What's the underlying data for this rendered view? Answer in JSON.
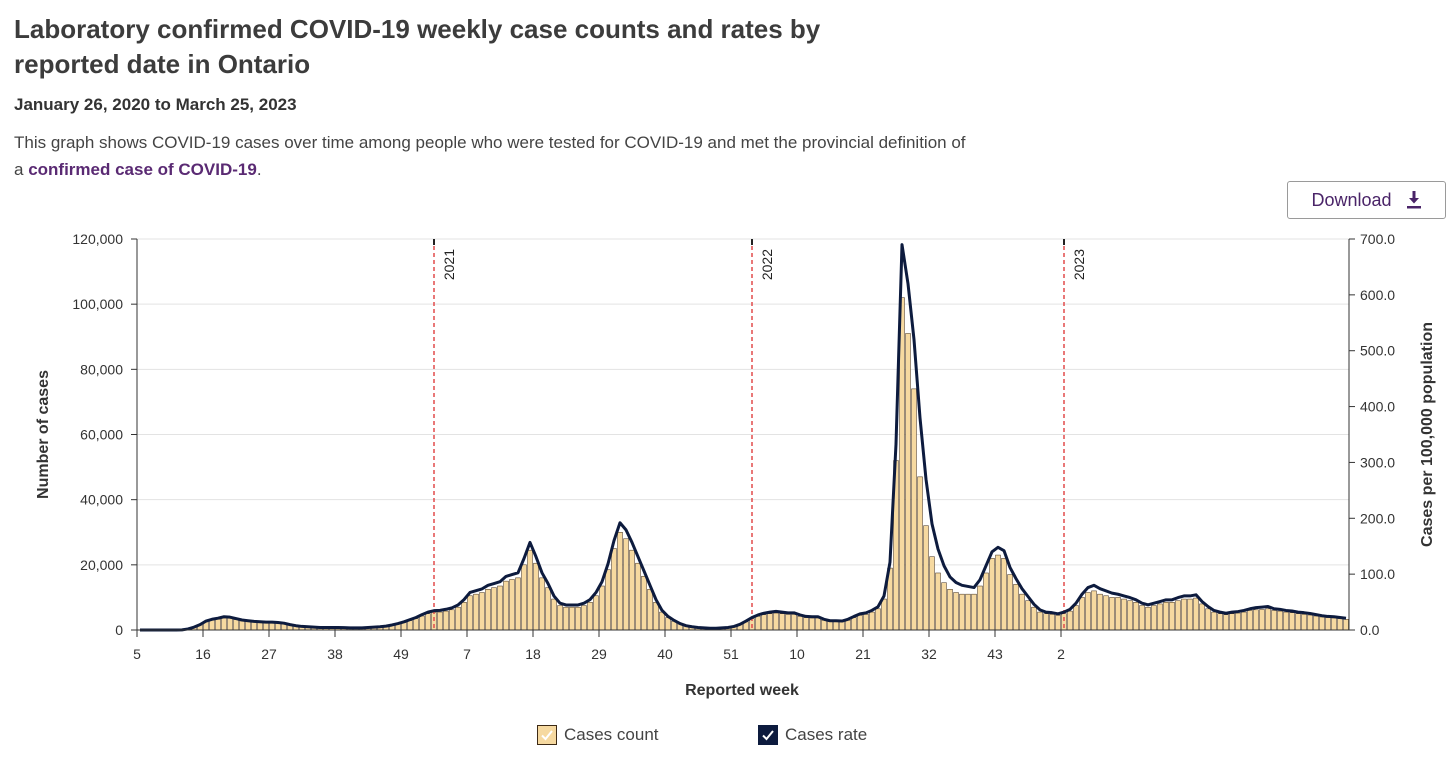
{
  "header": {
    "title": "Laboratory confirmed COVID-19 weekly case counts and rates by reported date in Ontario",
    "date_range": "January 26, 2020 to March 25, 2023",
    "description_before": "This graph shows COVID-19 cases over time among people who were tested for COVID-19 and met the provincial definition of a ",
    "description_link": "confirmed case of COVID-19",
    "description_after": "."
  },
  "toolbar": {
    "download_label": "Download",
    "download_icon": "download-icon"
  },
  "colors": {
    "bar_fill": "#f6d9a0",
    "bar_stroke": "#3d2a16",
    "line": "#0d1b3e",
    "year_marker": "#e24b4b",
    "grid": "#e3e3e3"
  },
  "chart_data": {
    "type": "bar+line",
    "xlabel": "Reported week",
    "ylabel_left": "Number of cases",
    "ylabel_right": "Cases per 100,000 population",
    "ylim_left": [
      0,
      120000
    ],
    "ylim_right": [
      0,
      700
    ],
    "y_ticks_left": [
      "0",
      "20,000",
      "40,000",
      "60,000",
      "80,000",
      "100,000",
      "120,000"
    ],
    "y_ticks_right": [
      "0.0",
      "100.0",
      "200.0",
      "300.0",
      "400.0",
      "500.0",
      "600.0",
      "700.0"
    ],
    "x_ticks": [
      "5",
      "16",
      "27",
      "38",
      "49",
      "7",
      "18",
      "29",
      "40",
      "51",
      "10",
      "21",
      "32",
      "43",
      "2"
    ],
    "year_markers": [
      "2021",
      "2022",
      "2023"
    ],
    "grid": true,
    "legend_position": "bottom",
    "series": [
      {
        "name": "Cases count",
        "axis": "left",
        "type": "bar",
        "values": [
          0,
          0,
          0,
          0,
          0,
          0,
          0,
          50,
          300,
          800,
          1500,
          2500,
          3000,
          3300,
          3700,
          3600,
          3200,
          2800,
          2600,
          2400,
          2300,
          2200,
          2200,
          2100,
          1900,
          1500,
          1200,
          1000,
          900,
          800,
          700,
          700,
          700,
          700,
          650,
          600,
          600,
          600,
          700,
          800,
          900,
          1100,
          1400,
          1800,
          2300,
          2900,
          3500,
          4300,
          5000,
          5400,
          5500,
          5800,
          6200,
          7000,
          8500,
          10500,
          11000,
          11500,
          12500,
          13000,
          13500,
          15000,
          15500,
          16000,
          20000,
          24500,
          20500,
          16000,
          13000,
          9500,
          7500,
          7000,
          7000,
          7000,
          7500,
          8500,
          10500,
          13500,
          18500,
          25000,
          30000,
          28000,
          24500,
          20500,
          16500,
          12500,
          8500,
          5500,
          3800,
          2700,
          1800,
          1200,
          900,
          700,
          600,
          500,
          500,
          600,
          700,
          1000,
          1600,
          2500,
          3500,
          4200,
          4700,
          5000,
          5200,
          5000,
          4800,
          4800,
          4200,
          3800,
          3700,
          3700,
          3000,
          2600,
          2600,
          2500,
          3000,
          3800,
          4500,
          4800,
          5500,
          6500,
          9500,
          19000,
          52000,
          102000,
          91000,
          74000,
          47000,
          32000,
          22500,
          17500,
          14500,
          12500,
          11500,
          11000,
          11000,
          11000,
          13500,
          17500,
          22000,
          23000,
          22000,
          17000,
          14000,
          11000,
          9000,
          7000,
          5500,
          5000,
          4800,
          4500,
          5000,
          5800,
          7500,
          10000,
          11500,
          12000,
          11000,
          10500,
          10000,
          10000,
          9500,
          9000,
          8500,
          7500,
          7000,
          7500,
          8000,
          8500,
          8500,
          9000,
          9500,
          9500,
          9800,
          8000,
          6500,
          5500,
          5000,
          4700,
          5000,
          5200,
          5500,
          6000,
          6200,
          6300,
          6500,
          6000,
          5800,
          5500,
          5300,
          5000,
          4800,
          4600,
          4300,
          4000,
          3800,
          3700,
          3500,
          3300
        ]
      },
      {
        "name": "Cases rate",
        "axis": "right",
        "type": "line",
        "values": [
          0,
          0,
          0,
          0,
          0,
          0,
          0,
          0.3,
          1.9,
          5.1,
          9.6,
          16.0,
          19.2,
          21.1,
          23.7,
          23.0,
          20.5,
          17.9,
          16.6,
          15.4,
          14.7,
          14.1,
          14.1,
          13.4,
          12.2,
          9.6,
          7.7,
          6.4,
          5.8,
          5.1,
          4.5,
          4.5,
          4.5,
          4.5,
          4.2,
          3.8,
          3.8,
          3.8,
          4.5,
          5.1,
          5.8,
          7.0,
          9.0,
          11.5,
          14.7,
          18.6,
          22.4,
          27.5,
          32.0,
          34.6,
          35.2,
          37.1,
          39.7,
          44.8,
          54.4,
          67.2,
          70.4,
          73.6,
          80.0,
          83.2,
          86.4,
          96.0,
          99.2,
          102.4,
          128.0,
          156.8,
          131.2,
          102.4,
          83.2,
          60.8,
          48.0,
          44.8,
          44.8,
          44.8,
          48.0,
          54.4,
          67.2,
          86.4,
          118.4,
          160.0,
          192.0,
          179.2,
          156.8,
          131.2,
          105.6,
          80.0,
          54.4,
          35.2,
          24.3,
          17.3,
          11.5,
          7.7,
          5.8,
          4.5,
          3.8,
          3.2,
          3.2,
          3.8,
          4.5,
          6.4,
          10.2,
          16.0,
          22.4,
          26.9,
          30.1,
          32.0,
          33.3,
          32.0,
          30.7,
          30.7,
          26.9,
          24.3,
          23.7,
          23.7,
          19.2,
          16.6,
          16.6,
          16.0,
          19.2,
          24.3,
          28.8,
          30.7,
          35.2,
          41.6,
          60.8,
          121.6,
          332.8,
          690.0,
          620.0,
          520.0,
          380.0,
          270.0,
          190.0,
          145.0,
          115.0,
          95.0,
          85.0,
          80.0,
          78.0,
          76.0,
          90.0,
          115.0,
          140.0,
          148.0,
          142.0,
          112.0,
          92.0,
          74.0,
          60.0,
          46.0,
          36.0,
          32.0,
          31.0,
          29.0,
          32.0,
          37.0,
          48.0,
          64.0,
          76.0,
          80.0,
          74.0,
          70.0,
          66.0,
          64.0,
          61.0,
          58.0,
          54.0,
          48.0,
          45.0,
          48.0,
          51.0,
          54.0,
          54.0,
          58.0,
          61.0,
          61.0,
          63.0,
          51.0,
          42.0,
          35.0,
          32.0,
          30.0,
          32.0,
          33.0,
          35.0,
          38.0,
          40.0,
          41.0,
          42.0,
          38.0,
          37.0,
          35.0,
          34.0,
          32.0,
          31.0,
          29.5,
          27.5,
          25.6,
          24.3,
          23.7,
          22.4,
          21.1
        ]
      }
    ]
  },
  "legend": {
    "items": [
      {
        "label": "Cases count"
      },
      {
        "label": "Cases rate"
      }
    ]
  }
}
